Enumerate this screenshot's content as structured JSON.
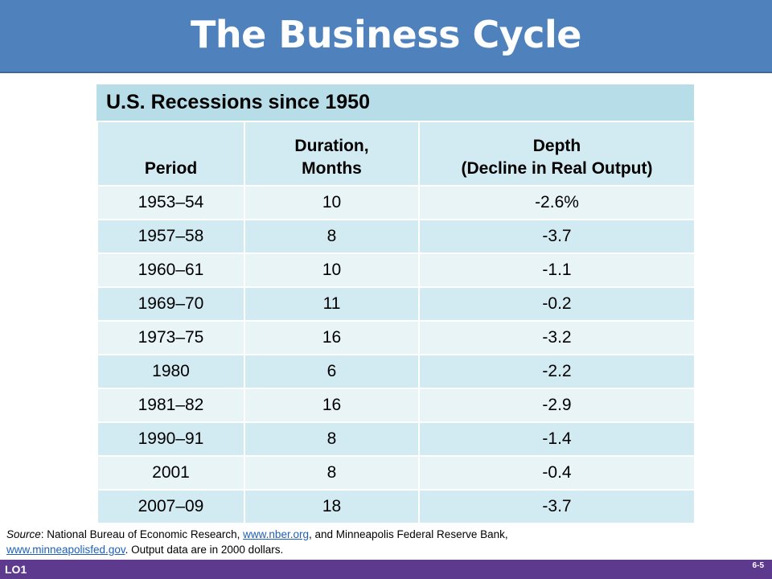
{
  "slide": {
    "title": "The Business Cycle",
    "lo_label": "LO1",
    "page_number": "6-5"
  },
  "table": {
    "caption": "U.S. Recessions since 1950",
    "headers": {
      "period": "Period",
      "duration_line1": "Duration,",
      "duration_line2": "Months",
      "depth_line1": "Depth",
      "depth_line2": "(Decline in Real Output)"
    },
    "rows": [
      {
        "period": "1953–54",
        "duration": "10",
        "depth": "-2.6%"
      },
      {
        "period": "1957–58",
        "duration": "8",
        "depth": "-3.7"
      },
      {
        "period": "1960–61",
        "duration": "10",
        "depth": "-1.1"
      },
      {
        "period": "1969–70",
        "duration": "11",
        "depth": "-0.2"
      },
      {
        "period": "1973–75",
        "duration": "16",
        "depth": "-3.2"
      },
      {
        "period": "1980",
        "duration": "6",
        "depth": "-2.2"
      },
      {
        "period": "1981–82",
        "duration": "16",
        "depth": "-2.9"
      },
      {
        "period": "1990–91",
        "duration": "8",
        "depth": "-1.4"
      },
      {
        "period": "2001",
        "duration": "8",
        "depth": "-0.4"
      },
      {
        "period": "2007–09",
        "duration": "18",
        "depth": "-3.7"
      }
    ]
  },
  "source": {
    "label": "Source",
    "text1": ": National Bureau of Economic Research, ",
    "link1": "www.nber.org",
    "text2": ", and Minneapolis Federal Reserve Bank,",
    "link2": "www.minneapolisfed.gov",
    "text3": ". Output data are in 2000 dollars."
  },
  "colors": {
    "title_bar": "#4f81bd",
    "caption_bg": "#b7dde8",
    "row_dark": "#d2eaf1",
    "row_light": "#e9f4f7",
    "footer_bar": "#5e3a8e",
    "link": "#1f5fb5"
  }
}
